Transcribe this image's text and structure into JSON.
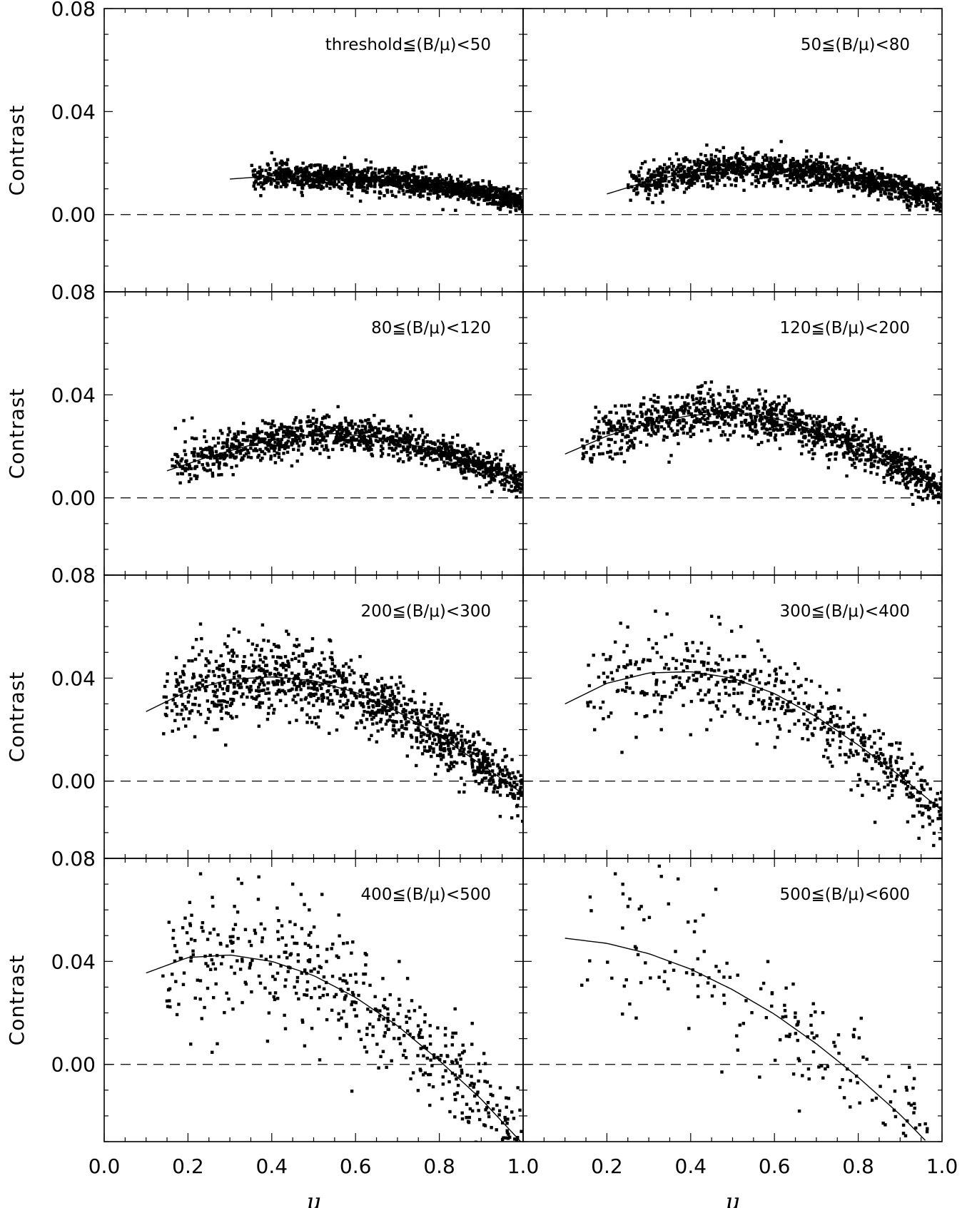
{
  "chart_data": {
    "type": "scatter",
    "layout": "4 rows x 2 columns, shared axes",
    "xlabel": "μ",
    "ylabel": "Contrast",
    "xlim": [
      0.0,
      1.0
    ],
    "ylim": [
      -0.03,
      0.08
    ],
    "x_ticks": [
      0.0,
      0.2,
      0.4,
      0.6,
      0.8,
      1.0
    ],
    "x_tick_labels": [
      "0.0",
      "0.2",
      "0.4",
      "0.6",
      "0.8",
      "1.0"
    ],
    "x_tick_labels_right": [
      "",
      "0.2",
      "0.4",
      "0.6",
      "0.8",
      "1.0"
    ],
    "y_ticks": [
      0.0,
      0.04,
      0.08
    ],
    "y_tick_labels": [
      "0.00",
      "0.04",
      "0.08"
    ],
    "reference_line": {
      "y": 0.0,
      "style": "dashed"
    },
    "panels": [
      {
        "label": "threshold≦(B/μ)<50",
        "mu_range": [
          0.35,
          1.0
        ],
        "fit": [
          [
            0.3,
            0.0138
          ],
          [
            0.4,
            0.015
          ],
          [
            0.5,
            0.015
          ],
          [
            0.6,
            0.0145
          ],
          [
            0.7,
            0.013
          ],
          [
            0.8,
            0.011
          ],
          [
            0.9,
            0.0085
          ],
          [
            1.0,
            0.005
          ]
        ],
        "scatter": 0.0025,
        "density": 1400,
        "outliers": []
      },
      {
        "label": "50≦(B/μ)<80",
        "mu_range": [
          0.25,
          1.0
        ],
        "fit": [
          [
            0.2,
            0.008
          ],
          [
            0.3,
            0.013
          ],
          [
            0.4,
            0.0165
          ],
          [
            0.5,
            0.018
          ],
          [
            0.6,
            0.018
          ],
          [
            0.7,
            0.0165
          ],
          [
            0.8,
            0.014
          ],
          [
            0.9,
            0.0105
          ],
          [
            1.0,
            0.0055
          ]
        ],
        "scatter": 0.003,
        "density": 1400,
        "outliers": []
      },
      {
        "label": "80≦(B/μ)<120",
        "mu_range": [
          0.16,
          1.0
        ],
        "fit": [
          [
            0.15,
            0.0105
          ],
          [
            0.25,
            0.016
          ],
          [
            0.35,
            0.0205
          ],
          [
            0.45,
            0.024
          ],
          [
            0.55,
            0.025
          ],
          [
            0.65,
            0.0235
          ],
          [
            0.75,
            0.02
          ],
          [
            0.85,
            0.0155
          ],
          [
            0.95,
            0.0095
          ],
          [
            1.0,
            0.006
          ]
        ],
        "scatter": 0.0035,
        "density": 1200,
        "outliers": [
          [
            0.17,
            0.027
          ],
          [
            0.19,
            0.03
          ],
          [
            0.21,
            0.031
          ],
          [
            0.22,
            0.023
          ],
          [
            0.24,
            0.026
          ],
          [
            0.26,
            0.013
          ],
          [
            0.28,
            0.009
          ],
          [
            0.5,
            0.034
          ]
        ]
      },
      {
        "label": "120≦(B/μ)<200",
        "mu_range": [
          0.14,
          1.0
        ],
        "fit": [
          [
            0.1,
            0.017
          ],
          [
            0.2,
            0.024
          ],
          [
            0.3,
            0.029
          ],
          [
            0.4,
            0.032
          ],
          [
            0.5,
            0.033
          ],
          [
            0.6,
            0.031
          ],
          [
            0.7,
            0.026
          ],
          [
            0.8,
            0.0195
          ],
          [
            0.9,
            0.0115
          ],
          [
            1.0,
            0.003
          ]
        ],
        "scatter": 0.0045,
        "density": 1200,
        "outliers": [
          [
            0.42,
            0.041
          ],
          [
            0.47,
            0.04
          ],
          [
            0.49,
            0.043
          ],
          [
            0.38,
            0.039
          ],
          [
            0.22,
            0.017
          ]
        ]
      },
      {
        "label": "200≦(B/μ)<300",
        "mu_range": [
          0.14,
          1.0
        ],
        "fit": [
          [
            0.1,
            0.027
          ],
          [
            0.2,
            0.035
          ],
          [
            0.3,
            0.0395
          ],
          [
            0.4,
            0.0405
          ],
          [
            0.5,
            0.039
          ],
          [
            0.6,
            0.0345
          ],
          [
            0.7,
            0.027
          ],
          [
            0.8,
            0.0175
          ],
          [
            0.9,
            0.0065
          ],
          [
            1.0,
            -0.005
          ]
        ],
        "scatter": 0.0065,
        "density": 1100,
        "outliers": [
          [
            0.23,
            0.061
          ],
          [
            0.22,
            0.055
          ],
          [
            0.31,
            0.059
          ],
          [
            0.29,
            0.014
          ],
          [
            0.27,
            0.02
          ],
          [
            0.39,
            0.024
          ],
          [
            0.44,
            0.057
          ],
          [
            0.46,
            0.055
          ]
        ]
      },
      {
        "label": "300≦(B/μ)<400",
        "mu_range": [
          0.15,
          1.0
        ],
        "fit": [
          [
            0.1,
            0.03
          ],
          [
            0.2,
            0.038
          ],
          [
            0.3,
            0.042
          ],
          [
            0.4,
            0.0425
          ],
          [
            0.5,
            0.04
          ],
          [
            0.6,
            0.034
          ],
          [
            0.7,
            0.025
          ],
          [
            0.8,
            0.014
          ],
          [
            0.9,
            0.002
          ],
          [
            1.0,
            -0.0115
          ]
        ],
        "scatter": 0.008,
        "density": 560,
        "outliers": [
          [
            0.22,
            0.054
          ],
          [
            0.3,
            0.055
          ],
          [
            0.34,
            0.056
          ],
          [
            0.45,
            0.064
          ],
          [
            0.47,
            0.061
          ],
          [
            0.52,
            0.06
          ],
          [
            0.27,
            0.017
          ],
          [
            0.4,
            0.018
          ],
          [
            0.33,
            0.02
          ],
          [
            0.84,
            -0.016
          ],
          [
            0.98,
            -0.025
          ]
        ]
      },
      {
        "label": "400≦(B/μ)<500",
        "mu_range": [
          0.14,
          1.0
        ],
        "fit": [
          [
            0.1,
            0.0355
          ],
          [
            0.2,
            0.0415
          ],
          [
            0.3,
            0.0425
          ],
          [
            0.4,
            0.04
          ],
          [
            0.5,
            0.0345
          ],
          [
            0.6,
            0.026
          ],
          [
            0.7,
            0.015
          ],
          [
            0.8,
            0.0015
          ],
          [
            0.9,
            -0.0135
          ],
          [
            1.0,
            -0.031
          ]
        ],
        "scatter": 0.011,
        "density": 480,
        "outliers": [
          [
            0.23,
            0.074
          ],
          [
            0.32,
            0.072
          ],
          [
            0.45,
            0.07
          ],
          [
            0.47,
            0.066
          ],
          [
            0.52,
            0.066
          ],
          [
            0.56,
            0.058
          ],
          [
            0.27,
            0.008
          ],
          [
            0.39,
            0.009
          ],
          [
            0.98,
            -0.029
          ]
        ]
      },
      {
        "label": "500≦(B/μ)<600",
        "mu_range": [
          0.14,
          0.97
        ],
        "fit": [
          [
            0.1,
            0.049
          ],
          [
            0.2,
            0.047
          ],
          [
            0.3,
            0.043
          ],
          [
            0.4,
            0.037
          ],
          [
            0.5,
            0.029
          ],
          [
            0.6,
            0.0195
          ],
          [
            0.7,
            0.008
          ],
          [
            0.8,
            -0.005
          ],
          [
            0.9,
            -0.0195
          ],
          [
            0.96,
            -0.0295
          ]
        ],
        "scatter": 0.012,
        "density": 170,
        "outliers": [
          [
            0.22,
            0.074
          ],
          [
            0.33,
            0.073
          ],
          [
            0.37,
            0.072
          ],
          [
            0.46,
            0.068
          ],
          [
            0.43,
            0.058
          ],
          [
            0.16,
            0.065
          ],
          [
            0.27,
            0.018
          ]
        ]
      }
    ]
  }
}
